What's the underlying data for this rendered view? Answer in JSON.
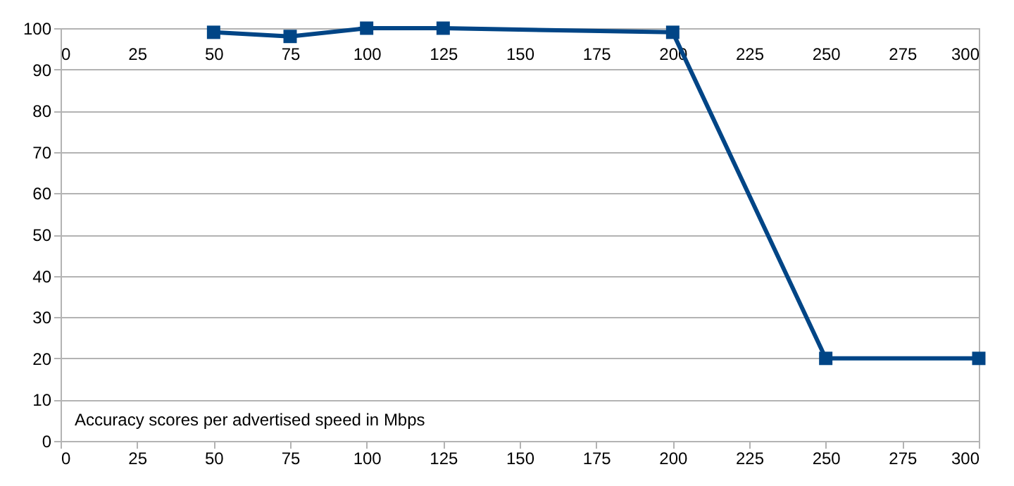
{
  "chart_data": {
    "type": "line",
    "x": [
      50,
      75,
      100,
      125,
      200,
      250,
      300
    ],
    "series": [
      {
        "color": "#004586",
        "values": [
          99,
          98,
          100,
          100,
          99,
          20,
          20
        ]
      }
    ],
    "xlim": [
      0,
      300
    ],
    "xticks": [
      0,
      25,
      50,
      75,
      100,
      125,
      150,
      175,
      200,
      225,
      250,
      275,
      300
    ],
    "x2lim": [
      0,
      300
    ],
    "x2ticks": [
      0,
      25,
      50,
      75,
      100,
      125,
      150,
      175,
      200,
      225,
      250,
      275,
      300
    ],
    "ylim": [
      0,
      100
    ],
    "yticks": [
      0,
      10,
      20,
      30,
      40,
      50,
      60,
      70,
      80,
      90,
      100
    ],
    "grid": "y",
    "marker": "square",
    "line_style": "solid",
    "annotations": [
      "Accuracy scores per advertised speed in Mbps"
    ]
  }
}
